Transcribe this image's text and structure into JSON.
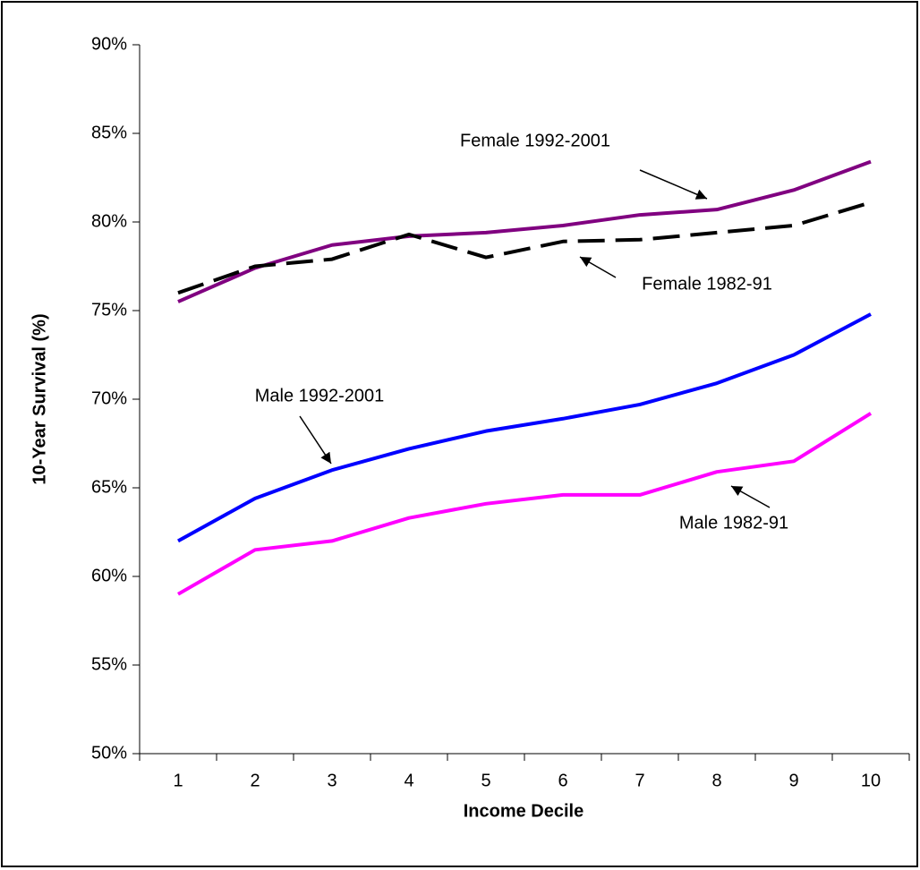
{
  "chart_data": {
    "type": "line",
    "xlabel": "Income Decile",
    "ylabel": "10-Year Survival (%)",
    "categories": [
      "1",
      "2",
      "3",
      "4",
      "5",
      "6",
      "7",
      "8",
      "9",
      "10"
    ],
    "ylim": [
      50,
      90
    ],
    "yticks": [
      {
        "value": 50,
        "label": "50%"
      },
      {
        "value": 55,
        "label": "55%"
      },
      {
        "value": 60,
        "label": "60%"
      },
      {
        "value": 65,
        "label": "65%"
      },
      {
        "value": 70,
        "label": "70%"
      },
      {
        "value": 75,
        "label": "75%"
      },
      {
        "value": 80,
        "label": "80%"
      },
      {
        "value": 85,
        "label": "85%"
      },
      {
        "value": 90,
        "label": "90%"
      }
    ],
    "series": [
      {
        "name": "Female 1992-2001",
        "color": "#800080",
        "dashed": false,
        "values": [
          75.5,
          77.4,
          78.7,
          79.2,
          79.4,
          79.8,
          80.4,
          80.7,
          81.8,
          83.4
        ]
      },
      {
        "name": "Female 1982-91",
        "color": "#000000",
        "dashed": true,
        "values": [
          76.0,
          77.5,
          77.9,
          79.3,
          78.0,
          78.9,
          79.0,
          79.4,
          79.8,
          81.1
        ]
      },
      {
        "name": "Male 1992-2001",
        "color": "#0000ff",
        "dashed": false,
        "values": [
          62.0,
          64.4,
          66.0,
          67.2,
          68.2,
          68.9,
          69.7,
          70.9,
          72.5,
          74.8
        ]
      },
      {
        "name": "Male 1982-91",
        "color": "#ff00ff",
        "dashed": false,
        "values": [
          59.0,
          61.5,
          62.0,
          63.3,
          64.1,
          64.6,
          64.6,
          65.9,
          66.5,
          69.2
        ]
      }
    ]
  }
}
